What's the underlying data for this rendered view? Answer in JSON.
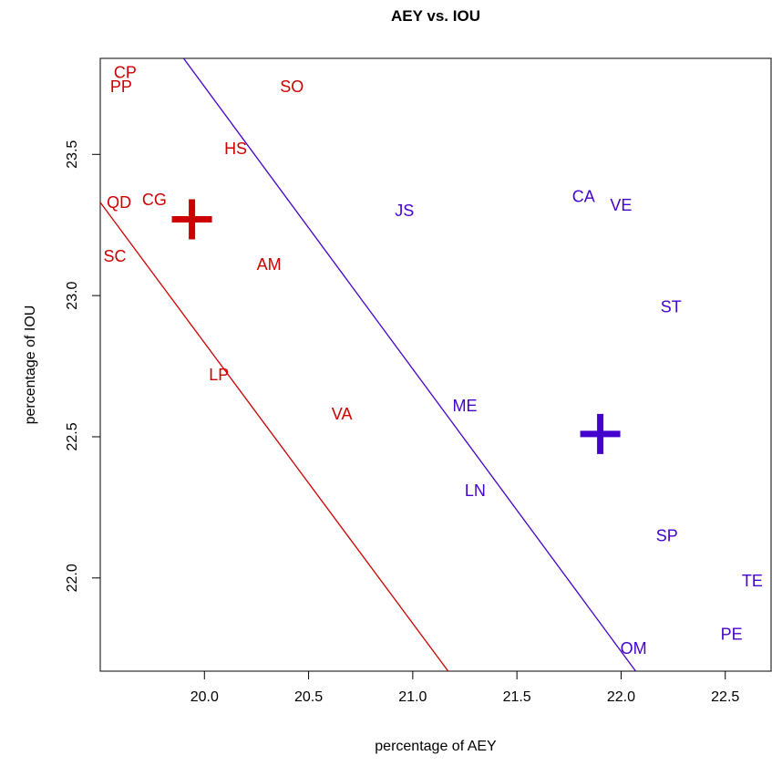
{
  "chart_data": {
    "type": "scatter",
    "title": "AEY vs. IOU",
    "xlabel": "percentage of AEY",
    "ylabel": "percentage of IOU",
    "xlim": [
      19.5,
      22.72
    ],
    "ylim": [
      21.67,
      23.84
    ],
    "x_ticks": [
      20.0,
      20.5,
      21.0,
      21.5,
      22.0,
      22.5
    ],
    "x_tick_labels": [
      "20.0",
      "20.5",
      "21.0",
      "21.5",
      "22.0",
      "22.5"
    ],
    "y_ticks": [
      22.0,
      22.5,
      23.0,
      23.5
    ],
    "y_tick_labels": [
      "22.0",
      "22.5",
      "23.0",
      "23.5"
    ],
    "grid": false,
    "series": [
      {
        "color": "#CC0000",
        "points": [
          {
            "label": "CP",
            "x": 19.62,
            "y": 23.79
          },
          {
            "label": "PP",
            "x": 19.6,
            "y": 23.74
          },
          {
            "label": "SO",
            "x": 20.42,
            "y": 23.74
          },
          {
            "label": "HS",
            "x": 20.15,
            "y": 23.52
          },
          {
            "label": "QD",
            "x": 19.59,
            "y": 23.33
          },
          {
            "label": "CG",
            "x": 19.76,
            "y": 23.34
          },
          {
            "label": "SC",
            "x": 19.57,
            "y": 23.14
          },
          {
            "label": "AM",
            "x": 20.31,
            "y": 23.11
          },
          {
            "label": "LP",
            "x": 20.07,
            "y": 22.72
          },
          {
            "label": "VA",
            "x": 20.66,
            "y": 22.58
          }
        ],
        "centroid": {
          "x": 19.94,
          "y": 23.27
        },
        "line": [
          {
            "x": 19.5,
            "y": 23.33
          },
          {
            "x": 21.17,
            "y": 21.67
          }
        ]
      },
      {
        "color": "#4400CC",
        "points": [
          {
            "label": "JS",
            "x": 20.96,
            "y": 23.3
          },
          {
            "label": "CA",
            "x": 21.82,
            "y": 23.35
          },
          {
            "label": "VE",
            "x": 22.0,
            "y": 23.32
          },
          {
            "label": "ST",
            "x": 22.24,
            "y": 22.96
          },
          {
            "label": "ME",
            "x": 21.25,
            "y": 22.61
          },
          {
            "label": "LN",
            "x": 21.3,
            "y": 22.31
          },
          {
            "label": "SP",
            "x": 22.22,
            "y": 22.15
          },
          {
            "label": "TE",
            "x": 22.63,
            "y": 21.99
          },
          {
            "label": "PE",
            "x": 22.53,
            "y": 21.8
          },
          {
            "label": "OM",
            "x": 22.06,
            "y": 21.75
          }
        ],
        "centroid": {
          "x": 21.9,
          "y": 22.51
        },
        "line": [
          {
            "x": 19.9,
            "y": 23.84
          },
          {
            "x": 22.07,
            "y": 21.67
          }
        ]
      }
    ]
  }
}
